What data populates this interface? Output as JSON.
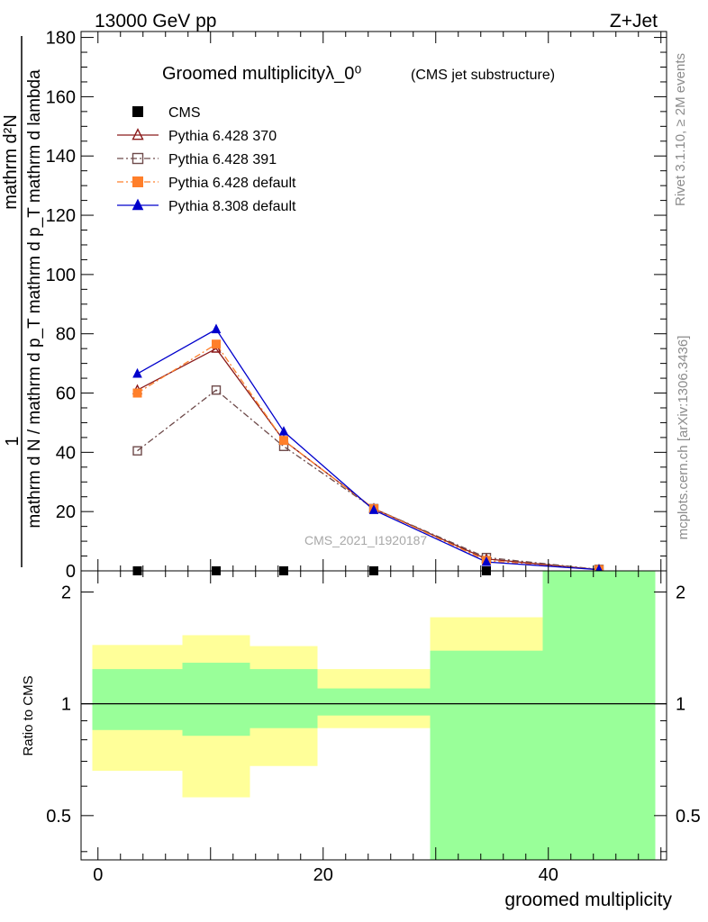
{
  "header": {
    "energy_label": "13000 GeV pp",
    "process_label": "Z+Jet"
  },
  "side_labels": {
    "rivet": "Rivet 3.1.10, ≥ 2M events",
    "mcplots": "mcplots.cern.ch [arXiv:1306.3436]"
  },
  "colors": {
    "cms": "#000000",
    "pythia6_370": "#8b1a1a",
    "pythia6_391": "#6e4a4a",
    "pythia6_default": "#ff7f2a",
    "pythia8_default": "#0000cc",
    "band_inner": "#99ff99",
    "band_outer": "#ffff99"
  },
  "chart_data": [
    {
      "type": "line",
      "title": "Groomed multiplicityλ_0⁰",
      "subtitle": "(CMS jet substructure)",
      "ylabel_top": "1",
      "ylabel_numerator": "mathrm d²N",
      "ylabel_denominator": "mathrm d N / mathrm d p_T mathrm d p_T mathrm d lambda",
      "watermark": "CMS_2021_I1920187",
      "xlim": [
        -1.5,
        50.5
      ],
      "ylim": [
        0,
        182
      ],
      "y_ticks": [
        0,
        20,
        40,
        60,
        80,
        100,
        120,
        140,
        160,
        180
      ],
      "legend_position": "top-left",
      "series": [
        {
          "name": "CMS",
          "key": "cms",
          "marker": "square-filled",
          "line": "none",
          "x": [
            3.5,
            10.5,
            16.5,
            24.5,
            34.5,
            44.5
          ],
          "y": [
            0,
            0,
            0,
            0,
            0,
            0
          ]
        },
        {
          "name": "Pythia 6.428 370",
          "key": "pythia6_370",
          "marker": "triangle-open",
          "line": "solid",
          "x": [
            3.5,
            10.5,
            16.5,
            24.5,
            34.5,
            44.5
          ],
          "y": [
            61,
            75,
            44,
            21,
            4,
            0.4
          ]
        },
        {
          "name": "Pythia 6.428 391",
          "key": "pythia6_391",
          "marker": "square-open",
          "line": "dashdot",
          "x": [
            3.5,
            10.5,
            16.5,
            24.5,
            34.5,
            44.5
          ],
          "y": [
            40.5,
            61,
            42,
            21,
            4.5,
            0.5
          ]
        },
        {
          "name": "Pythia 6.428 default",
          "key": "pythia6_default",
          "marker": "square-filled",
          "line": "dashdot",
          "x": [
            3.5,
            10.5,
            16.5,
            24.5,
            34.5,
            44.5
          ],
          "y": [
            60,
            76.5,
            44,
            21,
            3.5,
            0.4
          ]
        },
        {
          "name": "Pythia 8.308 default",
          "key": "pythia8_default",
          "marker": "triangle-filled",
          "line": "solid",
          "x": [
            3.5,
            10.5,
            16.5,
            24.5,
            34.5,
            44.5
          ],
          "y": [
            66.5,
            81.5,
            47,
            20.5,
            3,
            0.4
          ]
        }
      ]
    },
    {
      "type": "area",
      "ylabel": "Ratio to CMS",
      "xlabel": "groomed multiplicity",
      "log_y": true,
      "xlim": [
        -1.5,
        50.5
      ],
      "ylim": [
        0.38,
        2.28
      ],
      "x_ticks": [
        0,
        20,
        40
      ],
      "y_ticks": [
        0.5,
        1,
        2
      ],
      "reference_line": 1,
      "bins": [
        {
          "x0": -0.5,
          "x1": 7.5,
          "inner": [
            0.85,
            1.24
          ],
          "outer": [
            0.66,
            1.44
          ]
        },
        {
          "x0": 7.5,
          "x1": 13.5,
          "inner": [
            0.82,
            1.29
          ],
          "outer": [
            0.56,
            1.53
          ]
        },
        {
          "x0": 13.5,
          "x1": 19.5,
          "inner": [
            0.86,
            1.24
          ],
          "outer": [
            0.68,
            1.43
          ]
        },
        {
          "x0": 19.5,
          "x1": 29.5,
          "inner": [
            0.93,
            1.1
          ],
          "outer": [
            0.86,
            1.24
          ]
        },
        {
          "x0": 29.5,
          "x1": 39.5,
          "inner": [
            0.38,
            1.39
          ],
          "outer": [
            0.38,
            1.71
          ]
        },
        {
          "x0": 39.5,
          "x1": 49.5,
          "inner": [
            0.38,
            2.28
          ],
          "outer": [
            0.38,
            2.28
          ]
        }
      ]
    }
  ]
}
